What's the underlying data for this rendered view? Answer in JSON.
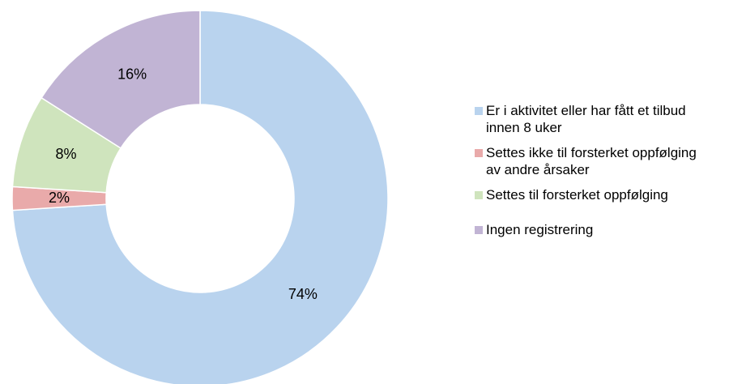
{
  "chart_data": {
    "type": "donut",
    "categories": [
      "Er i aktivitet eller har fått et tilbud innen 8 uker",
      "Settes ikke til forsterket oppfølging av andre årsaker",
      "Settes til forsterket oppfølging",
      "Ingen registrering"
    ],
    "values": [
      74,
      2,
      8,
      16
    ],
    "value_labels": [
      "74%",
      "2%",
      "8%",
      "16%"
    ],
    "colors": [
      "#b9d3ee",
      "#e9aaaa",
      "#cfe4bd",
      "#c1b4d4"
    ],
    "legend": "right"
  }
}
